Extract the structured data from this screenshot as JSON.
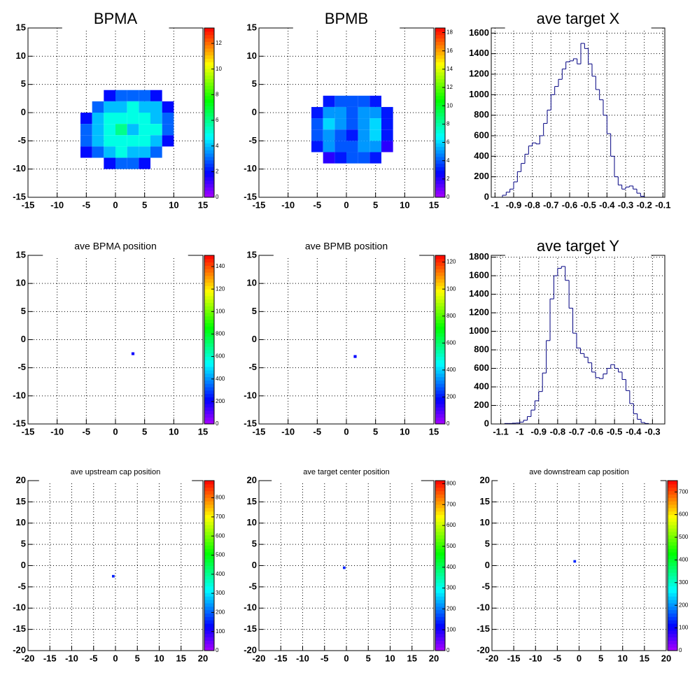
{
  "chart_data": [
    {
      "type": "heatmap",
      "title": "BPMA",
      "xlim": [
        -15,
        15
      ],
      "ylim": [
        -15,
        15
      ],
      "xticks": [
        -15,
        -10,
        -5,
        0,
        5,
        10,
        15
      ],
      "yticks": [
        -15,
        -10,
        -5,
        0,
        5,
        10,
        15
      ],
      "zlim": [
        0,
        13.2
      ],
      "zticks": [
        0,
        2,
        4,
        6,
        8,
        10,
        12
      ],
      "binwidth": 2,
      "grid": true,
      "x": [
        -5,
        -3,
        -1,
        1,
        3,
        5,
        7,
        9
      ],
      "y": [
        3,
        1,
        -1,
        -3,
        -5,
        -7,
        -9
      ],
      "z": [
        [
          null,
          null,
          2,
          3,
          3,
          3,
          2,
          null
        ],
        [
          null,
          3,
          4,
          4,
          5,
          4,
          4,
          2
        ],
        [
          2,
          4,
          5,
          5,
          5,
          5,
          4,
          3
        ],
        [
          3,
          4,
          5,
          6,
          4,
          5,
          5,
          3
        ],
        [
          3,
          4,
          5,
          5,
          5,
          5,
          4,
          2
        ],
        [
          2,
          3,
          4,
          5,
          4,
          4,
          3,
          null
        ],
        [
          null,
          null,
          2,
          3,
          3,
          2,
          null,
          null
        ]
      ]
    },
    {
      "type": "heatmap",
      "title": "BPMB",
      "xlim": [
        -15,
        15
      ],
      "ylim": [
        -15,
        15
      ],
      "xticks": [
        -15,
        -10,
        -5,
        0,
        5,
        10,
        15
      ],
      "yticks": [
        -15,
        -10,
        -5,
        0,
        5,
        10,
        15
      ],
      "zlim": [
        0,
        18.5
      ],
      "zticks": [
        0,
        2,
        4,
        6,
        8,
        10,
        12,
        14,
        16,
        18
      ],
      "binwidth": 2,
      "grid": true,
      "x": [
        -5,
        -3,
        -1,
        1,
        3,
        5,
        7
      ],
      "y": [
        2,
        0,
        -2,
        -4,
        -6,
        -8
      ],
      "z": [
        [
          null,
          3,
          4,
          4,
          4,
          3,
          null
        ],
        [
          3,
          5,
          5,
          4,
          5,
          5,
          3
        ],
        [
          4,
          6,
          5,
          4,
          5,
          6,
          3
        ],
        [
          4,
          5,
          4,
          3,
          5,
          6,
          3
        ],
        [
          3,
          5,
          4,
          4,
          5,
          5,
          2
        ],
        [
          null,
          2,
          3,
          4,
          4,
          3,
          null
        ]
      ]
    },
    {
      "type": "histogram",
      "title": "ave target X",
      "color": "#000080",
      "grid": true,
      "xlim": [
        -1.02,
        -0.09
      ],
      "ylim": [
        0,
        1650
      ],
      "xticks": [
        -1,
        -0.9,
        -0.8,
        -0.7,
        -0.6,
        -0.5,
        -0.4,
        -0.3,
        -0.2,
        -0.1
      ],
      "yticks": [
        0,
        200,
        400,
        600,
        800,
        1000,
        1200,
        1400,
        1600
      ],
      "bins": [
        -0.96,
        -0.94,
        -0.92,
        -0.9,
        -0.88,
        -0.86,
        -0.84,
        -0.82,
        -0.8,
        -0.78,
        -0.76,
        -0.74,
        -0.72,
        -0.7,
        -0.68,
        -0.66,
        -0.64,
        -0.62,
        -0.6,
        -0.58,
        -0.56,
        -0.54,
        -0.52,
        -0.5,
        -0.48,
        -0.46,
        -0.44,
        -0.42,
        -0.4,
        -0.38,
        -0.36,
        -0.34,
        -0.32,
        -0.3,
        -0.28,
        -0.26,
        -0.24,
        -0.22,
        -0.2
      ],
      "values": [
        20,
        50,
        80,
        150,
        250,
        330,
        420,
        500,
        530,
        520,
        600,
        720,
        850,
        1000,
        1080,
        1150,
        1250,
        1320,
        1330,
        1350,
        1300,
        1500,
        1450,
        1300,
        1180,
        1050,
        950,
        800,
        620,
        400,
        200,
        120,
        80,
        100,
        110,
        80,
        40,
        10
      ]
    },
    {
      "type": "heatmap",
      "title": "ave BPMA position",
      "xlim": [
        -15,
        15
      ],
      "ylim": [
        -15,
        15
      ],
      "xticks": [
        -15,
        -10,
        -5,
        0,
        5,
        10,
        15
      ],
      "yticks": [
        -15,
        -10,
        -5,
        0,
        5,
        10,
        15
      ],
      "zlim": [
        0,
        150
      ],
      "zticks": [
        0,
        {
          "value": 20,
          "label": "200"
        },
        {
          "value": 40,
          "label": "400"
        },
        {
          "value": 60,
          "label": "600"
        },
        {
          "value": 80,
          "label": "800"
        },
        100,
        120,
        140
      ],
      "binwidth": 0.5,
      "grid": true,
      "x": [
        3
      ],
      "y": [
        -2.5
      ],
      "z": [
        [
          20
        ]
      ]
    },
    {
      "type": "heatmap",
      "title": "ave BPMB position",
      "xlim": [
        -15,
        15
      ],
      "ylim": [
        -15,
        15
      ],
      "xticks": [
        -15,
        -10,
        -5,
        0,
        5,
        10,
        15
      ],
      "yticks": [
        -15,
        -10,
        -5,
        0,
        5,
        10,
        15
      ],
      "zlim": [
        0,
        125
      ],
      "zticks": [
        0,
        {
          "value": 20,
          "label": "200"
        },
        {
          "value": 40,
          "label": "400"
        },
        {
          "value": 60,
          "label": "600"
        },
        {
          "value": 80,
          "label": "800"
        },
        100,
        120
      ],
      "binwidth": 0.5,
      "grid": true,
      "x": [
        1.5
      ],
      "y": [
        -3
      ],
      "z": [
        [
          18
        ]
      ]
    },
    {
      "type": "histogram",
      "title": "ave target Y",
      "color": "#000080",
      "grid": true,
      "xlim": [
        -1.15,
        -0.235
      ],
      "ylim": [
        0,
        1820
      ],
      "xticks": [
        -1.1,
        -1,
        -0.9,
        -0.8,
        -0.7,
        -0.6,
        -0.5,
        -0.4,
        -0.3
      ],
      "yticks": [
        0,
        200,
        400,
        600,
        800,
        1000,
        1200,
        1400,
        1600,
        1800
      ],
      "bins": [
        -1.08,
        -1.06,
        -1.04,
        -1.02,
        -1,
        -0.98,
        -0.96,
        -0.94,
        -0.92,
        -0.9,
        -0.88,
        -0.86,
        -0.84,
        -0.82,
        -0.8,
        -0.78,
        -0.76,
        -0.74,
        -0.72,
        -0.7,
        -0.68,
        -0.66,
        -0.64,
        -0.62,
        -0.6,
        -0.58,
        -0.56,
        -0.54,
        -0.52,
        -0.5,
        -0.48,
        -0.46,
        -0.44,
        -0.42,
        -0.4,
        -0.38,
        -0.36,
        -0.34,
        -0.32
      ],
      "values": [
        5,
        5,
        8,
        10,
        20,
        40,
        80,
        150,
        250,
        350,
        550,
        900,
        1350,
        1600,
        1680,
        1700,
        1550,
        1250,
        980,
        820,
        760,
        720,
        660,
        560,
        500,
        490,
        540,
        600,
        640,
        600,
        560,
        480,
        360,
        220,
        110,
        50,
        15,
        5
      ]
    },
    {
      "type": "heatmap",
      "title": "ave upstream cap position",
      "xlim": [
        -20,
        20
      ],
      "ylim": [
        -20,
        20
      ],
      "xticks": [
        -20,
        -15,
        -10,
        -5,
        0,
        5,
        10,
        15,
        20
      ],
      "yticks": [
        -20,
        -15,
        -10,
        -5,
        0,
        5,
        10,
        15,
        20
      ],
      "zlim": [
        0,
        890
      ],
      "zticks": [
        0,
        100,
        200,
        300,
        400,
        500,
        600,
        700,
        800
      ],
      "binwidth": 0.6,
      "grid": true,
      "x": [
        -0.5
      ],
      "y": [
        -2.5
      ],
      "z": [
        [
          150
        ]
      ]
    },
    {
      "type": "heatmap",
      "title": "ave target center  position",
      "xlim": [
        -20,
        20
      ],
      "ylim": [
        -20,
        20
      ],
      "xticks": [
        -20,
        -15,
        -10,
        -5,
        0,
        5,
        10,
        15,
        20
      ],
      "yticks": [
        -20,
        -15,
        -10,
        -5,
        0,
        5,
        10,
        15,
        20
      ],
      "zlim": [
        0,
        815
      ],
      "zticks": [
        0,
        100,
        200,
        300,
        400,
        500,
        600,
        700,
        800
      ],
      "binwidth": 0.6,
      "grid": true,
      "x": [
        -0.5
      ],
      "y": [
        -0.5
      ],
      "z": [
        [
          140
        ]
      ]
    },
    {
      "type": "heatmap",
      "title": "ave downstream cap position",
      "xlim": [
        -20,
        20
      ],
      "ylim": [
        -20,
        20
      ],
      "xticks": [
        -20,
        -15,
        -10,
        -5,
        0,
        5,
        10,
        15,
        20
      ],
      "yticks": [
        -20,
        -15,
        -10,
        -5,
        0,
        5,
        10,
        15,
        20
      ],
      "zlim": [
        0,
        750
      ],
      "zticks": [
        0,
        100,
        200,
        300,
        400,
        500,
        600,
        700
      ],
      "binwidth": 0.6,
      "grid": true,
      "x": [
        -1
      ],
      "y": [
        1
      ],
      "z": [
        [
          130
        ]
      ]
    }
  ]
}
